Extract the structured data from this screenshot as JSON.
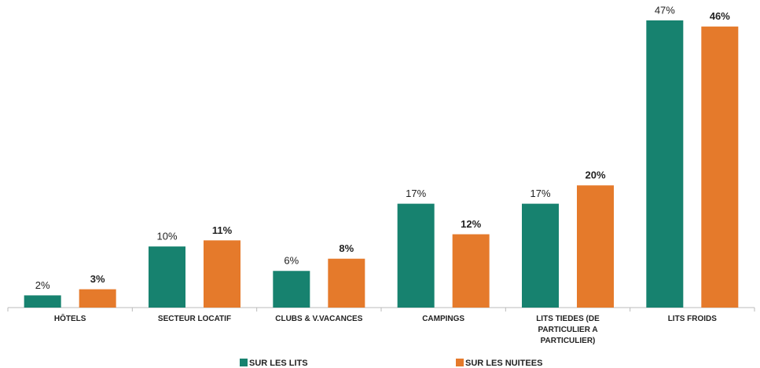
{
  "chart_data": {
    "type": "bar",
    "categories": [
      "HÔTELS",
      "SECTEUR LOCATIF",
      "CLUBS & V.VACANCES",
      "CAMPINGS",
      "LITS TIEDES (DE PARTICULIER A PARTICULIER)",
      "LITS FROIDS"
    ],
    "series": [
      {
        "name": "SUR LES LITS",
        "color": "#17826f",
        "values": [
          2,
          10,
          6,
          17,
          17,
          47
        ],
        "value_labels": [
          "2%",
          "10%",
          "6%",
          "17%",
          "17%",
          "47%"
        ]
      },
      {
        "name": "SUR LES NUITEES",
        "color": "#e57a2b",
        "values": [
          3,
          11,
          8,
          12,
          20,
          46
        ],
        "value_labels": [
          "3%",
          "11%",
          "8%",
          "12%",
          "20%",
          "46%"
        ]
      }
    ],
    "legend": "bottom"
  }
}
